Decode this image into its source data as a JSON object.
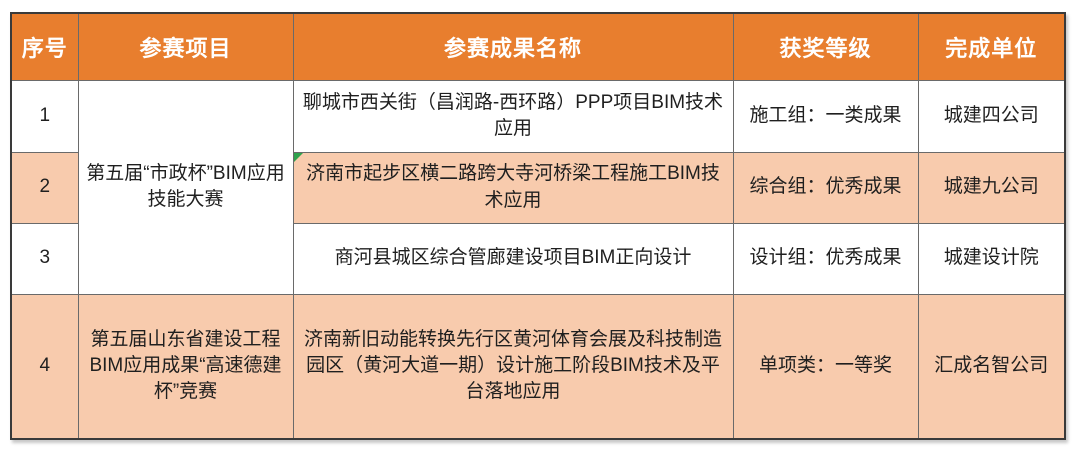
{
  "chart_data": {
    "type": "table",
    "title": "",
    "columns": [
      "序号",
      "参赛项目",
      "参赛成果名称",
      "获奖等级",
      "完成单位"
    ],
    "rows": [
      [
        "1",
        "第五届“市政杯”BIM应用技能大赛",
        "聊城市西关街（昌润路-西环路）PPP项目BIM技术应用",
        "施工组：一类成果",
        "城建四公司"
      ],
      [
        "2",
        "第五届“市政杯”BIM应用技能大赛",
        "济南市起步区横二路跨大寺河桥梁工程施工BIM技术应用",
        "综合组：优秀成果",
        "城建九公司"
      ],
      [
        "3",
        "第五届“市政杯”BIM应用技能大赛",
        "商河县城区综合管廊建设项目BIM正向设计",
        "设计组：优秀成果",
        "城建设计院"
      ],
      [
        "4",
        "第五届山东省建设工程BIM应用成果“高速德建杯”竞赛",
        "济南新旧动能转换先行区黄河体育会展及科技制造园区（黄河大道一期）设计施工阶段BIM技术及平台落地应用",
        "单项类：一等奖",
        "汇成名智公司"
      ]
    ],
    "merged": [
      {
        "column": "参赛项目",
        "rows": [
          1,
          2,
          3
        ],
        "value": "第五届“市政杯”BIM应用技能大赛"
      }
    ],
    "layout": {
      "header_position": "top",
      "grid": true,
      "row_striping": [
        "white",
        "peach",
        "white",
        "peach"
      ]
    }
  },
  "styles": {
    "header_bg": "#e87e2e",
    "header_text": "#ffffff",
    "stripe_bg": "#f8cbad",
    "body_text": "#1f1f1f",
    "outer_border": "#3a3a3a",
    "inner_border": "#6a6a6a",
    "error_marker_green": "#2fa24d"
  },
  "icons": {
    "error_marker": "excel-error-indicator-triangle"
  }
}
